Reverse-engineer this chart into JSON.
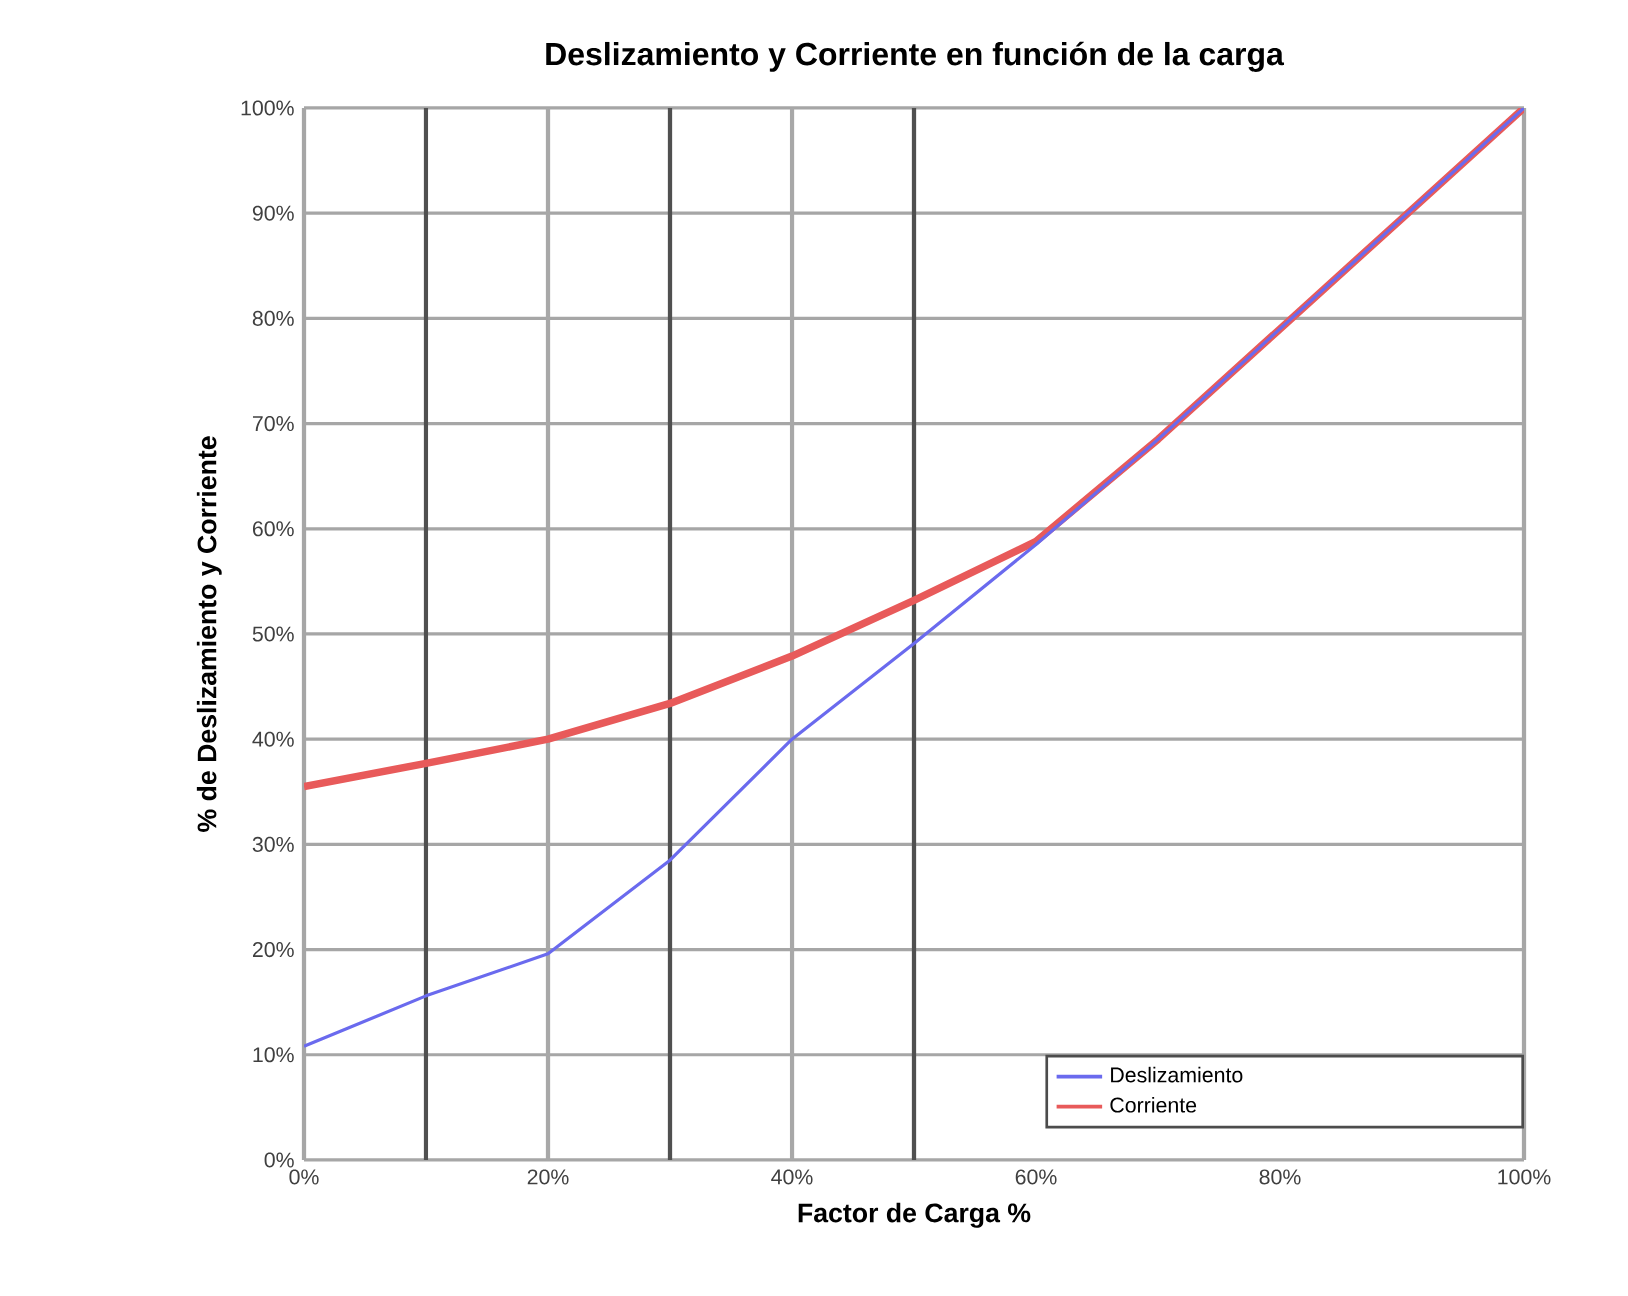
{
  "chart_data": {
    "type": "line",
    "title": "Deslizamiento  y Corriente  en función  de la carga",
    "xlabel": "Factor  de Carga %",
    "ylabel": "% de Deslizamiento  y Corriente",
    "x": [
      0,
      10,
      20,
      30,
      40,
      50,
      60,
      70,
      80,
      90,
      100
    ],
    "series": [
      {
        "name": "Deslizamiento",
        "color": "#6a6aee",
        "values": [
          10.8,
          15.6,
          19.6,
          28.5,
          40,
          49.1,
          58.5,
          68.5,
          79,
          89.5,
          100
        ]
      },
      {
        "name": "Corriente",
        "color": "#e85a5a",
        "values": [
          35.5,
          37.7,
          40,
          43.4,
          47.9,
          53.2,
          58.8,
          68.5,
          79,
          89.5,
          100
        ]
      }
    ],
    "xlim": [
      0,
      100
    ],
    "ylim": [
      0,
      100
    ],
    "xticks": [
      {
        "value": 0,
        "label": "0%"
      },
      {
        "value": 20,
        "label": "20%"
      },
      {
        "value": 40,
        "label": "40%"
      },
      {
        "value": 60,
        "label": "60%"
      },
      {
        "value": 80,
        "label": "80%"
      },
      {
        "value": 100,
        "label": "100%"
      }
    ],
    "yticks": [
      {
        "value": 0,
        "label": "0%"
      },
      {
        "value": 10,
        "label": "10%"
      },
      {
        "value": 20,
        "label": "20%"
      },
      {
        "value": 30,
        "label": "30%"
      },
      {
        "value": 40,
        "label": "40%"
      },
      {
        "value": 50,
        "label": "50%"
      },
      {
        "value": 60,
        "label": "60%"
      },
      {
        "value": 70,
        "label": "70%"
      },
      {
        "value": 80,
        "label": "80%"
      },
      {
        "value": 90,
        "label": "90%"
      },
      {
        "value": 100,
        "label": "100%"
      }
    ],
    "ref_lines": [
      {
        "axis": "x",
        "value": 10,
        "color": "#505050"
      },
      {
        "axis": "x",
        "value": 20,
        "color": "#a8a8a8"
      },
      {
        "axis": "x",
        "value": 30,
        "color": "#505050"
      },
      {
        "axis": "x",
        "value": 40,
        "color": "#a8a8a8"
      },
      {
        "axis": "x",
        "value": 50,
        "color": "#505050"
      }
    ],
    "grid": "y",
    "legend": "bottom right",
    "marker": "none",
    "line_style": "solid"
  }
}
